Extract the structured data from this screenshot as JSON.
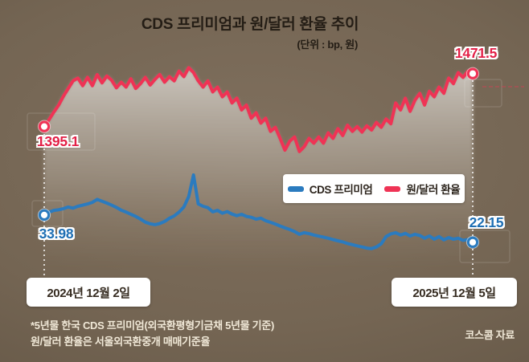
{
  "header": {
    "title": "CDS 프리미엄과 원/달러 환율 추이",
    "unit_label": "(단위 : bp, 원)"
  },
  "legend": {
    "cds_label": "CDS 프리미엄",
    "fx_label": "원/달러 환율"
  },
  "annotations": {
    "fx_start_value": "1395.1",
    "fx_end_value": "1471.5",
    "cds_start_value": "33.98",
    "cds_end_value": "22.15",
    "date_start": "2024년 12월 2일",
    "date_end": "2025년 12월 5일"
  },
  "footnotes": [
    "*5년물 한국 CDS 프리미엄(외국환평형기금채 5년물 기준)",
    "원/달러 환율은 서울외국환중개 매매기준율"
  ],
  "source": "코스콤 자료",
  "colors": {
    "fx_line": "#ef3355",
    "cds_line": "#2b7bbf",
    "background": "#746553",
    "area_fill_top": "#d2cdc6",
    "label_box": "#ffffff",
    "footnote_text": "#f0e8d7",
    "title_text": "#241d15"
  },
  "chart_data": {
    "type": "line",
    "title": "CDS 프리미엄과 원/달러 환율 추이",
    "unit_note": "(단위 : bp, 원)",
    "x_range": {
      "start_label": "2024년 12월 2일",
      "end_label": "2025년 12월 5일"
    },
    "grid": false,
    "legend_position": "middle-right",
    "series": [
      {
        "name": "원/달러 환율",
        "unit": "원",
        "color": "#ef3355",
        "area_fill": true,
        "start_value": 1395.1,
        "end_value": 1471.5,
        "ylim": [
          1346,
          1485
        ],
        "values": [
          1395.1,
          1405,
          1416,
          1426,
          1439,
          1450,
          1461,
          1465,
          1454,
          1466,
          1454,
          1470,
          1458,
          1468,
          1462,
          1451,
          1459,
          1452,
          1464,
          1450,
          1457,
          1466,
          1455,
          1463,
          1470,
          1459,
          1467,
          1461,
          1475,
          1467,
          1480,
          1473,
          1461,
          1452,
          1461,
          1445,
          1452,
          1438,
          1445,
          1429,
          1436,
          1419,
          1426,
          1407,
          1415,
          1400,
          1407,
          1388,
          1394,
          1378,
          1361,
          1374,
          1380,
          1359,
          1366,
          1378,
          1371,
          1380,
          1371,
          1386,
          1378,
          1392,
          1382,
          1397,
          1388,
          1395,
          1387,
          1396,
          1390,
          1401,
          1394,
          1406,
          1399,
          1429,
          1419,
          1436,
          1417,
          1433,
          1443,
          1426,
          1446,
          1438,
          1452,
          1443,
          1465,
          1457,
          1473,
          1466,
          1475,
          1471.5
        ]
      },
      {
        "name": "CDS 프리미엄",
        "unit": "bp",
        "color": "#2b7bbf",
        "area_fill": false,
        "start_value": 33.98,
        "end_value": 22.15,
        "ylim": [
          19.3,
          54.2
        ],
        "values": [
          33.98,
          35.2,
          36.0,
          36.3,
          36.8,
          37.5,
          37.0,
          37.8,
          38.3,
          38.8,
          39.5,
          40.8,
          40.0,
          39.2,
          38.3,
          37.3,
          36.1,
          35.3,
          34.3,
          33.4,
          32.2,
          30.9,
          30.2,
          29.8,
          30.3,
          31.2,
          32.6,
          33.6,
          35.3,
          37.5,
          42.0,
          51.4,
          38.8,
          37.8,
          37.2,
          35.4,
          36.0,
          34.8,
          35.5,
          34.4,
          33.7,
          34.3,
          33.4,
          33.0,
          32.2,
          32.6,
          31.5,
          30.8,
          30.1,
          29.2,
          28.4,
          27.7,
          26.8,
          25.6,
          26.3,
          25.9,
          25.3,
          24.8,
          24.4,
          23.9,
          23.3,
          22.8,
          22.3,
          21.6,
          21.1,
          20.6,
          20.1,
          19.6,
          19.4,
          20.1,
          21.5,
          24.6,
          25.8,
          26.3,
          25.3,
          26.0,
          24.9,
          25.6,
          25.1,
          23.9,
          24.9,
          23.5,
          24.6,
          23.2,
          24.2,
          23.5,
          23.9,
          23.0,
          23.3,
          22.15
        ]
      }
    ]
  }
}
